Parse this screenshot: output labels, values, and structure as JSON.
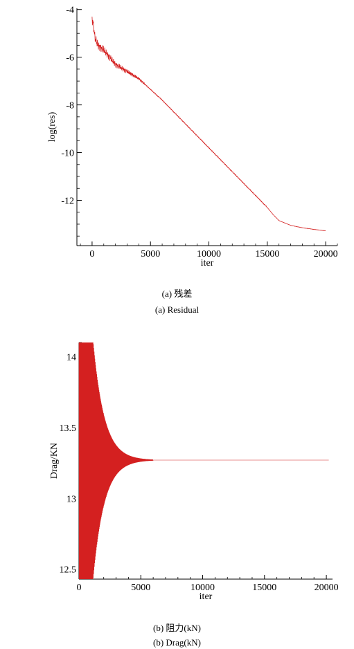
{
  "captions": {
    "a_cn": "(a) 残差",
    "a_en": "(a) Residual",
    "b_cn": "(b) 阻力(kN)",
    "b_en": "(b) Drag(kN)"
  },
  "colors": {
    "series": "#d42020",
    "axis": "#000000"
  },
  "chart_data": [
    {
      "type": "line",
      "xlabel": "iter",
      "ylabel": "log(res)",
      "xlim": [
        -1300,
        21000
      ],
      "ylim": [
        -13.9,
        -3.95
      ],
      "xticks": [
        0,
        5000,
        10000,
        15000,
        20000
      ],
      "yticks": [
        -4,
        -6,
        -8,
        -10,
        -12
      ],
      "grid": false,
      "series": [
        {
          "x": [
            0,
            100,
            250,
            500,
            1000,
            2000,
            3000,
            4000,
            5000,
            6000,
            7000,
            8000,
            9000,
            10000,
            11000,
            12000,
            13000,
            14000,
            15000,
            15500,
            16000,
            17000,
            18000,
            19000,
            20000
          ],
          "y": [
            -4.4,
            -4.6,
            -5.2,
            -5.5,
            -5.7,
            -6.3,
            -6.6,
            -6.9,
            -7.35,
            -7.8,
            -8.3,
            -8.8,
            -9.3,
            -9.8,
            -10.3,
            -10.8,
            -11.3,
            -11.8,
            -12.3,
            -12.6,
            -12.85,
            -13.05,
            -13.15,
            -13.22,
            -13.28
          ]
        }
      ]
    },
    {
      "type": "line",
      "xlabel": "iter",
      "ylabel": "Drag/KN",
      "xlim": [
        0,
        20500
      ],
      "ylim": [
        12.43,
        14.1
      ],
      "xticks": [
        0,
        5000,
        10000,
        15000,
        20000
      ],
      "yticks": [
        14,
        13.5,
        13,
        12.5
      ],
      "grid": false,
      "series": [
        {
          "converged_value": 13.27,
          "oscillation_end": 6000,
          "x_end": 20200
        }
      ]
    }
  ]
}
